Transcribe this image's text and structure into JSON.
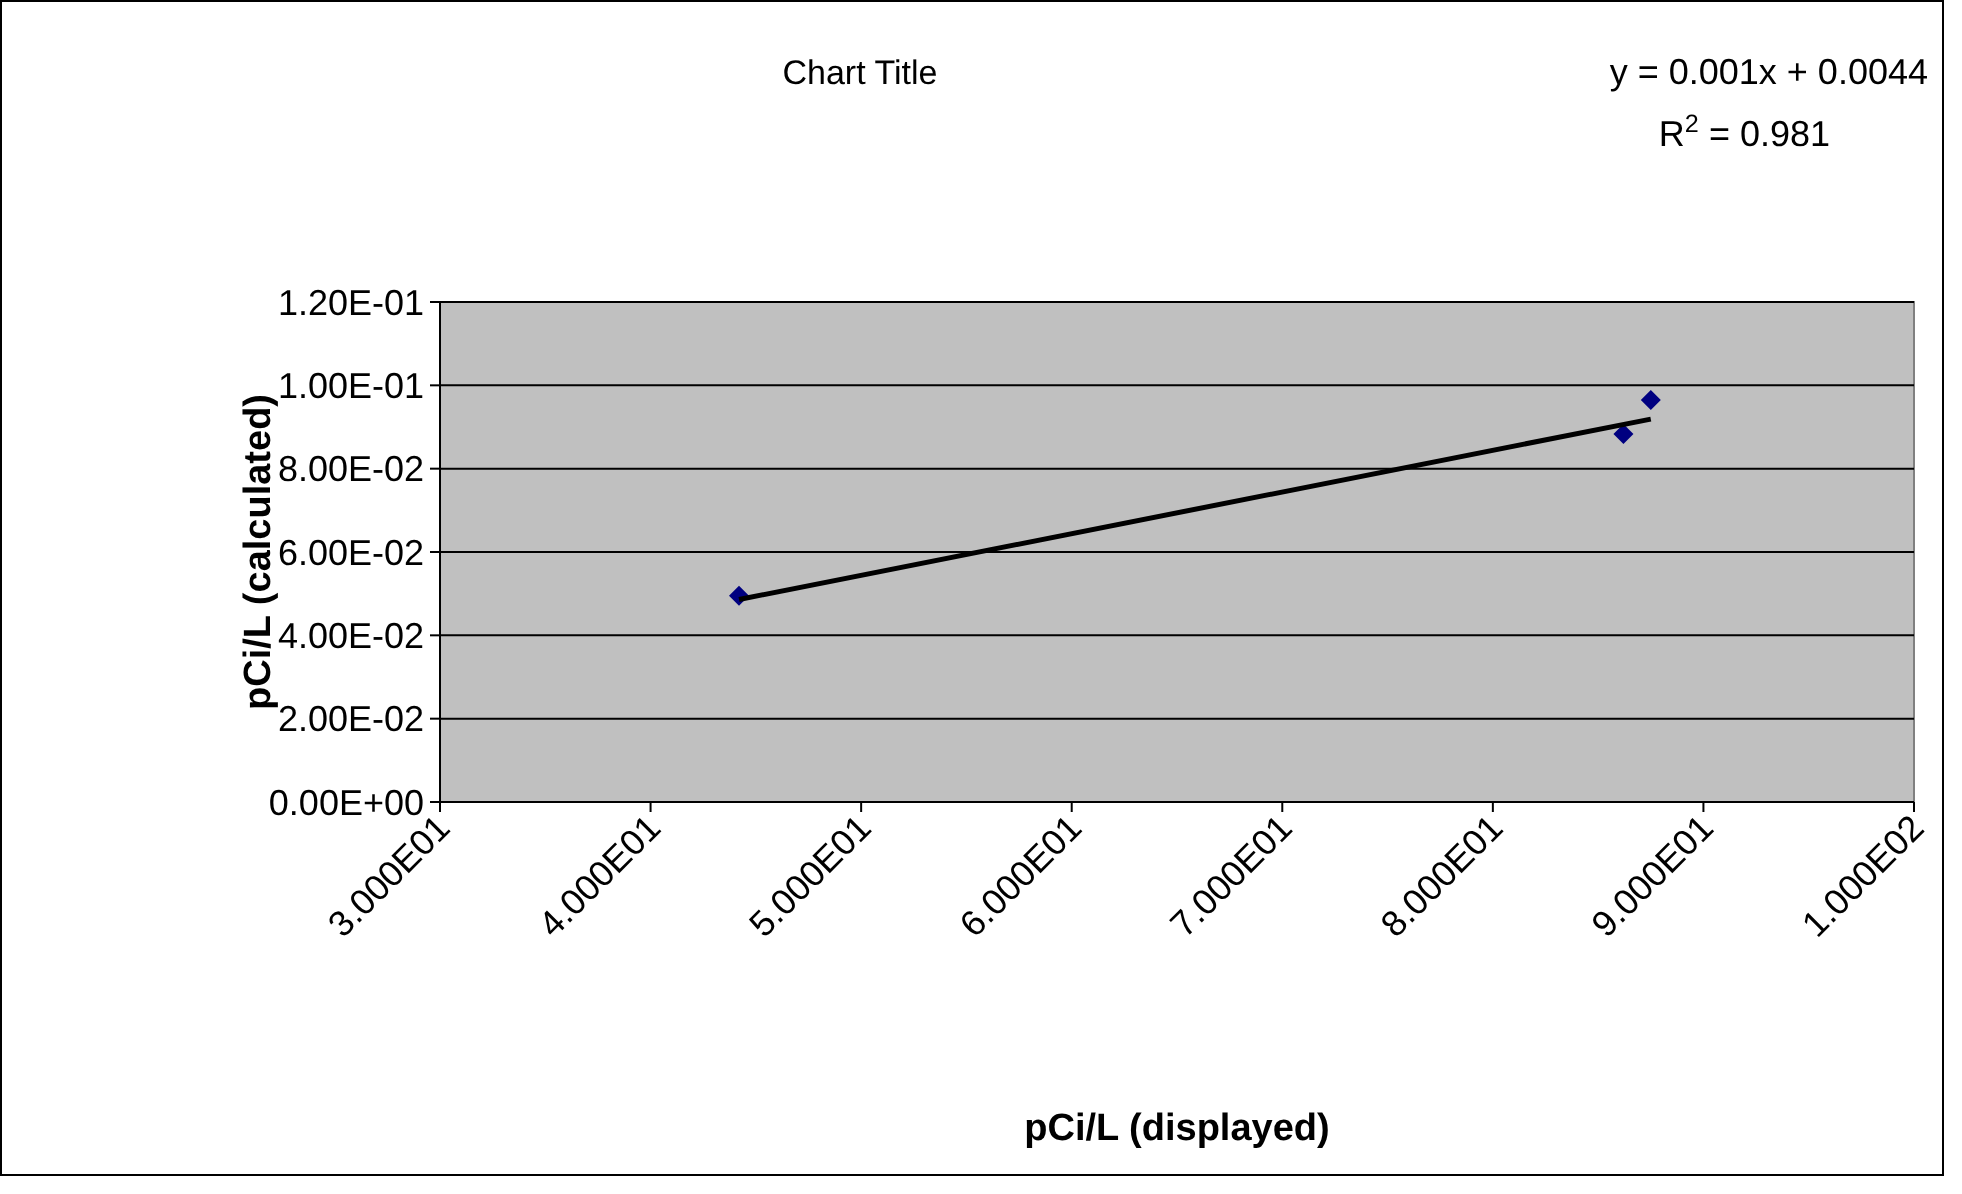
{
  "chart_data": {
    "type": "scatter",
    "title": "Chart Title",
    "xlabel": "pCi/L (displayed)",
    "ylabel": "pCi/L (calculated)",
    "xlim": [
      30,
      100
    ],
    "xticks": [
      {
        "value": 30,
        "label": "3.000E01"
      },
      {
        "value": 40,
        "label": "4.000E01"
      },
      {
        "value": 50,
        "label": "5.000E01"
      },
      {
        "value": 60,
        "label": "6.000E01"
      },
      {
        "value": 70,
        "label": "7.000E01"
      },
      {
        "value": 80,
        "label": "8.000E01"
      },
      {
        "value": 90,
        "label": "9.000E01"
      },
      {
        "value": 100,
        "label": "1.000E02"
      }
    ],
    "ylim": [
      0,
      0.12
    ],
    "yticks": [
      {
        "value": 0,
        "label": "0.00E+00"
      },
      {
        "value": 0.02,
        "label": "2.00E-02"
      },
      {
        "value": 0.04,
        "label": "4.00E-02"
      },
      {
        "value": 0.06,
        "label": "6.00E-02"
      },
      {
        "value": 0.08,
        "label": "8.00E-02"
      },
      {
        "value": 0.1,
        "label": "1.00E-01"
      },
      {
        "value": 0.12,
        "label": "1.20E-01"
      }
    ],
    "grid": "y",
    "series": [
      {
        "color": "#000080",
        "marker": "diamond",
        "x": [
          44.2,
          86.2,
          87.5
        ],
        "values": [
          0.0495,
          0.0883,
          0.0965
        ]
      },
      {
        "type": "line",
        "color": "#000000",
        "marker": "none",
        "x": [
          44.2,
          87.5
        ],
        "values": [
          0.0486,
          0.0919
        ]
      }
    ],
    "annotations": [
      "y = 0.001x + 0.0044",
      "R$^{2}$ = 0.981"
    ]
  }
}
